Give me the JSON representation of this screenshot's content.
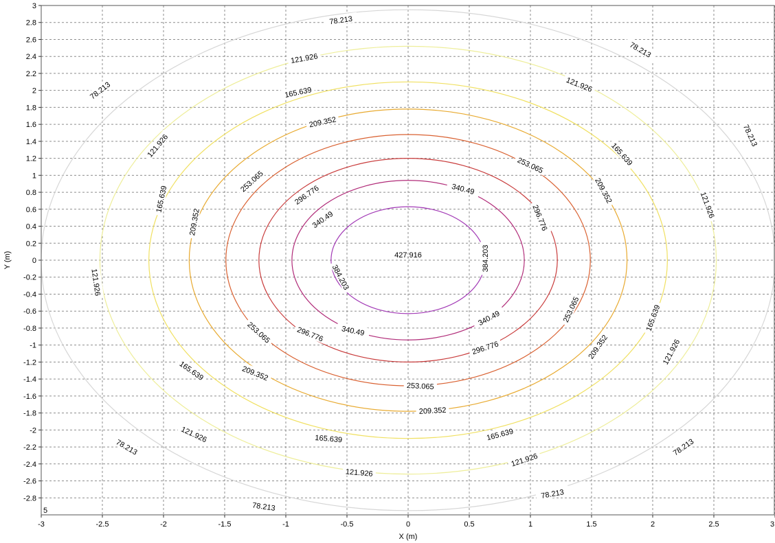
{
  "chart_data": {
    "type": "contour",
    "xlabel": "X (m)",
    "ylabel": "Y (m)",
    "xlim": [
      -3,
      3
    ],
    "ylim": [
      -3,
      3
    ],
    "grid": true,
    "corner_label": "5",
    "x_ticks": [
      "-3",
      "-2.5",
      "-2",
      "-1.5",
      "-1",
      "-0.5",
      "0",
      "0.5",
      "1",
      "1.5",
      "2",
      "2.5",
      "3"
    ],
    "y_ticks": [
      "3",
      "2.8",
      "2.6",
      "2.4",
      "2.2",
      "2",
      "1.8",
      "1.6",
      "1.4",
      "1.2",
      "1",
      "0.8",
      "0.6",
      "0.4",
      "0.2",
      "0",
      "-0.2",
      "-0.4",
      "-0.6",
      "-0.8",
      "-1",
      "-1.2",
      "-1.4",
      "-1.6",
      "-1.8",
      "-2",
      "-2.2",
      "-2.4",
      "-2.6",
      "-2.8"
    ],
    "center_label": "427.916",
    "levels": [
      {
        "value": "78.213",
        "semi_x": 3.0,
        "semi_y": 2.95,
        "color": "#d6d6d6",
        "labels": [
          {
            "x": -0.55,
            "y": 2.83,
            "a": -8
          },
          {
            "x": 1.9,
            "y": 2.48,
            "a": 30
          },
          {
            "x": 2.8,
            "y": 1.47,
            "a": 65
          },
          {
            "x": 2.25,
            "y": -2.2,
            "a": -35
          },
          {
            "x": 1.18,
            "y": -2.75,
            "a": -10
          },
          {
            "x": -1.18,
            "y": -2.9,
            "a": 8
          },
          {
            "x": -2.3,
            "y": -2.2,
            "a": 30
          },
          {
            "x": -2.52,
            "y": 2.0,
            "a": -38
          }
        ]
      },
      {
        "value": "121.926",
        "semi_x": 2.52,
        "semi_y": 2.52,
        "color": "#eeee9a",
        "labels": [
          {
            "x": -0.85,
            "y": 2.38,
            "a": -10
          },
          {
            "x": 1.4,
            "y": 2.07,
            "a": 22
          },
          {
            "x": 2.45,
            "y": 0.65,
            "a": 70
          },
          {
            "x": 2.15,
            "y": -1.08,
            "a": -62
          },
          {
            "x": 0.95,
            "y": -2.35,
            "a": -18
          },
          {
            "x": -0.4,
            "y": -2.5,
            "a": 5
          },
          {
            "x": -1.75,
            "y": -2.05,
            "a": 25
          },
          {
            "x": -2.55,
            "y": -0.26,
            "a": 82
          },
          {
            "x": -2.05,
            "y": 1.35,
            "a": -50
          }
        ]
      },
      {
        "value": "165.639",
        "semi_x": 2.12,
        "semi_y": 2.1,
        "color": "#f0e060",
        "labels": [
          {
            "x": -0.9,
            "y": 1.98,
            "a": -12
          },
          {
            "x": 1.75,
            "y": 1.25,
            "a": 48
          },
          {
            "x": 2.0,
            "y": -0.68,
            "a": -70
          },
          {
            "x": 0.75,
            "y": -2.05,
            "a": -15
          },
          {
            "x": -0.65,
            "y": -2.1,
            "a": 5
          },
          {
            "x": -1.77,
            "y": -1.3,
            "a": 35
          },
          {
            "x": -2.02,
            "y": 0.72,
            "a": -78
          }
        ]
      },
      {
        "value": "209.352",
        "semi_x": 1.79,
        "semi_y": 1.78,
        "color": "#e8aa30",
        "labels": [
          {
            "x": -0.7,
            "y": 1.63,
            "a": -12
          },
          {
            "x": 1.6,
            "y": 0.82,
            "a": 62
          },
          {
            "x": 1.55,
            "y": -1.02,
            "a": -55
          },
          {
            "x": 0.2,
            "y": -1.77,
            "a": -3
          },
          {
            "x": -1.25,
            "y": -1.33,
            "a": 22
          },
          {
            "x": -1.75,
            "y": 0.45,
            "a": -80
          }
        ]
      },
      {
        "value": "253.065",
        "semi_x": 1.49,
        "semi_y": 1.48,
        "color": "#d96030",
        "labels": [
          {
            "x": -1.28,
            "y": 0.93,
            "a": -42
          },
          {
            "x": 1.0,
            "y": 1.12,
            "a": 25
          },
          {
            "x": 1.33,
            "y": -0.58,
            "a": -65
          },
          {
            "x": 0.1,
            "y": -1.48,
            "a": 3
          },
          {
            "x": -1.22,
            "y": -0.85,
            "a": 42
          }
        ]
      },
      {
        "value": "296.776",
        "semi_x": 1.22,
        "semi_y": 1.2,
        "color": "#c83a3a",
        "labels": [
          {
            "x": -0.83,
            "y": 0.77,
            "a": -35
          },
          {
            "x": 1.08,
            "y": 0.5,
            "a": 68
          },
          {
            "x": 0.63,
            "y": -1.03,
            "a": -18
          },
          {
            "x": -0.8,
            "y": -0.87,
            "a": 22
          }
        ]
      },
      {
        "value": "340.49",
        "semi_x": 0.95,
        "semi_y": 0.94,
        "color": "#b02a78",
        "labels": [
          {
            "x": -0.7,
            "y": 0.48,
            "a": -35
          },
          {
            "x": 0.45,
            "y": 0.84,
            "a": 15
          },
          {
            "x": 0.66,
            "y": -0.68,
            "a": -28
          },
          {
            "x": -0.45,
            "y": -0.83,
            "a": 12
          }
        ]
      },
      {
        "value": "384.203",
        "semi_x": 0.63,
        "semi_y": 0.63,
        "color": "#a23ab6",
        "labels": [
          {
            "x": 0.63,
            "y": 0.02,
            "a": -90
          },
          {
            "x": -0.55,
            "y": -0.2,
            "a": 62
          }
        ]
      }
    ]
  }
}
